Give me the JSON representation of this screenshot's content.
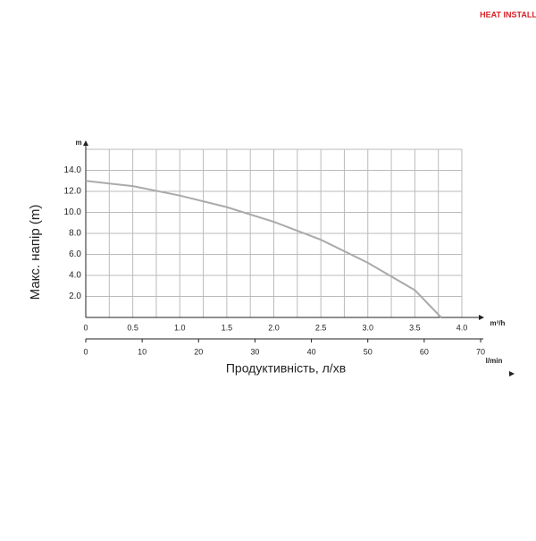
{
  "brand": "HEAT INSTALL",
  "chart_data": {
    "type": "line",
    "ylabel": "Макс. напір (m)",
    "y_unit": "m",
    "xlabel": "Продуктивність, л/хв",
    "x_unit": "m³/h",
    "x2_unit": "l/min",
    "x": [
      0,
      0.5,
      1.0,
      1.5,
      2.0,
      2.5,
      3.0,
      3.5,
      3.78
    ],
    "series": [
      {
        "color": "#aaaaaa",
        "values": [
          13.0,
          12.5,
          11.6,
          10.5,
          9.1,
          7.4,
          5.2,
          2.6,
          0
        ]
      }
    ],
    "xlim": [
      0,
      4
    ],
    "ylim": [
      0,
      16
    ],
    "xticks": [
      0,
      0.5,
      {
        "value": 1,
        "label": "1.0"
      },
      1.5,
      {
        "value": 2,
        "label": "2.0"
      },
      2.5,
      {
        "value": 3,
        "label": "3.0"
      },
      3.5,
      {
        "value": 4,
        "label": "4.0"
      }
    ],
    "x_minor_grid": [
      0.25,
      0.75,
      1.25,
      1.75,
      2.25,
      2.75,
      3.25,
      3.75
    ],
    "yticks": [
      {
        "value": 2,
        "label": "2.0"
      },
      {
        "value": 4,
        "label": "4.0"
      },
      {
        "value": 6,
        "label": "6.0"
      },
      {
        "value": 8,
        "label": "8.0"
      },
      {
        "value": 10,
        "label": "10.0"
      },
      {
        "value": 12,
        "label": "12.0"
      },
      {
        "value": 14,
        "label": "14.0"
      },
      16
    ],
    "x2lim": [
      0,
      70
    ],
    "x2ticks": [
      0,
      10,
      20,
      30,
      40,
      50,
      60,
      70
    ],
    "grid": true
  }
}
